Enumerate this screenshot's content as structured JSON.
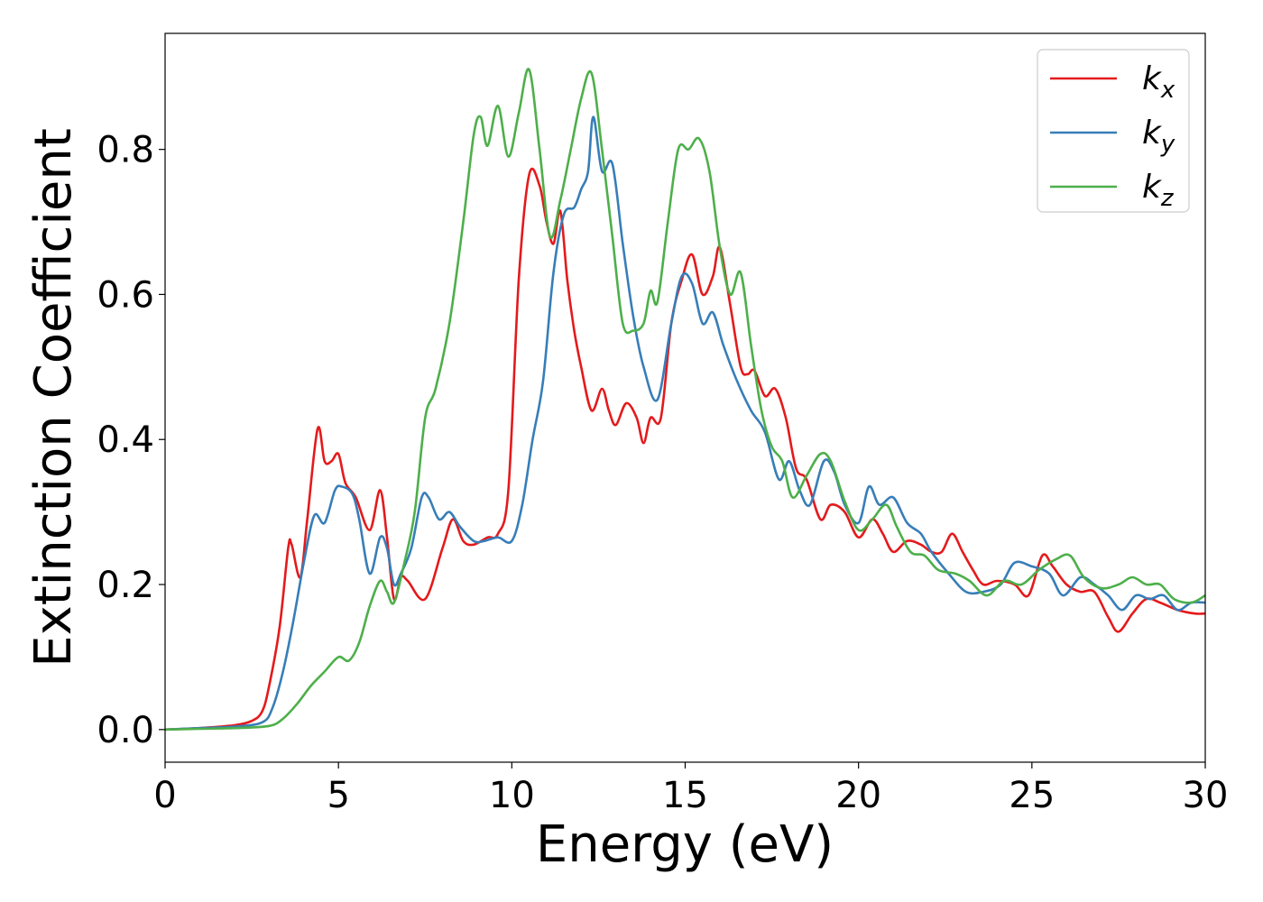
{
  "chart_data": {
    "type": "line",
    "title": "",
    "xlabel": "Energy (eV)",
    "ylabel": "Extinction Coefficient",
    "xlim": [
      0,
      30
    ],
    "ylim": [
      -0.045,
      0.96
    ],
    "xticks": [
      0,
      5,
      10,
      15,
      20,
      25,
      30
    ],
    "xtick_labels": [
      "0",
      "5",
      "10",
      "15",
      "20",
      "25",
      "30"
    ],
    "yticks": [
      0.0,
      0.2,
      0.4,
      0.6,
      0.8
    ],
    "ytick_labels": [
      "0.0",
      "0.2",
      "0.4",
      "0.6",
      "0.8"
    ],
    "grid": false,
    "legend_position": "top-right",
    "series": [
      {
        "name": "kx",
        "name_base": "k",
        "name_sub": "x",
        "color": "#e41a1c",
        "points": [
          [
            0,
            0.0
          ],
          [
            1,
            0.002
          ],
          [
            2,
            0.006
          ],
          [
            2.5,
            0.012
          ],
          [
            2.8,
            0.025
          ],
          [
            3.0,
            0.06
          ],
          [
            3.3,
            0.14
          ],
          [
            3.55,
            0.25
          ],
          [
            3.65,
            0.255
          ],
          [
            3.9,
            0.21
          ],
          [
            4.1,
            0.29
          ],
          [
            4.4,
            0.415
          ],
          [
            4.6,
            0.37
          ],
          [
            4.8,
            0.37
          ],
          [
            5.0,
            0.38
          ],
          [
            5.2,
            0.34
          ],
          [
            5.5,
            0.32
          ],
          [
            5.9,
            0.275
          ],
          [
            6.2,
            0.33
          ],
          [
            6.4,
            0.265
          ],
          [
            6.6,
            0.18
          ],
          [
            6.8,
            0.21
          ],
          [
            7.0,
            0.205
          ],
          [
            7.5,
            0.18
          ],
          [
            8.0,
            0.25
          ],
          [
            8.3,
            0.29
          ],
          [
            8.6,
            0.26
          ],
          [
            8.9,
            0.255
          ],
          [
            9.3,
            0.265
          ],
          [
            9.6,
            0.27
          ],
          [
            9.9,
            0.33
          ],
          [
            10.2,
            0.62
          ],
          [
            10.5,
            0.765
          ],
          [
            10.8,
            0.75
          ],
          [
            11.0,
            0.7
          ],
          [
            11.2,
            0.67
          ],
          [
            11.4,
            0.715
          ],
          [
            11.6,
            0.62
          ],
          [
            11.8,
            0.55
          ],
          [
            12.0,
            0.5
          ],
          [
            12.3,
            0.44
          ],
          [
            12.6,
            0.47
          ],
          [
            12.8,
            0.44
          ],
          [
            13.0,
            0.42
          ],
          [
            13.3,
            0.45
          ],
          [
            13.6,
            0.43
          ],
          [
            13.8,
            0.395
          ],
          [
            14.0,
            0.43
          ],
          [
            14.3,
            0.43
          ],
          [
            14.6,
            0.56
          ],
          [
            14.9,
            0.62
          ],
          [
            15.2,
            0.655
          ],
          [
            15.5,
            0.6
          ],
          [
            15.8,
            0.625
          ],
          [
            16.0,
            0.665
          ],
          [
            16.3,
            0.585
          ],
          [
            16.6,
            0.5
          ],
          [
            16.8,
            0.49
          ],
          [
            17.0,
            0.495
          ],
          [
            17.3,
            0.46
          ],
          [
            17.6,
            0.47
          ],
          [
            17.9,
            0.43
          ],
          [
            18.2,
            0.36
          ],
          [
            18.5,
            0.345
          ],
          [
            18.9,
            0.29
          ],
          [
            19.2,
            0.31
          ],
          [
            19.6,
            0.3
          ],
          [
            20.0,
            0.265
          ],
          [
            20.4,
            0.29
          ],
          [
            20.7,
            0.27
          ],
          [
            21.0,
            0.245
          ],
          [
            21.4,
            0.26
          ],
          [
            21.8,
            0.255
          ],
          [
            22.1,
            0.245
          ],
          [
            22.4,
            0.245
          ],
          [
            22.7,
            0.27
          ],
          [
            23.0,
            0.245
          ],
          [
            23.3,
            0.22
          ],
          [
            23.6,
            0.2
          ],
          [
            24.0,
            0.205
          ],
          [
            24.5,
            0.2
          ],
          [
            24.9,
            0.185
          ],
          [
            25.3,
            0.24
          ],
          [
            25.6,
            0.225
          ],
          [
            26.0,
            0.2
          ],
          [
            26.4,
            0.19
          ],
          [
            26.8,
            0.19
          ],
          [
            27.2,
            0.155
          ],
          [
            27.5,
            0.135
          ],
          [
            27.9,
            0.16
          ],
          [
            28.3,
            0.18
          ],
          [
            28.7,
            0.175
          ],
          [
            29.2,
            0.165
          ],
          [
            29.7,
            0.16
          ],
          [
            30.0,
            0.16
          ]
        ]
      },
      {
        "name": "ky",
        "name_base": "k",
        "name_sub": "y",
        "color": "#377eb8",
        "points": [
          [
            0,
            0.0
          ],
          [
            1,
            0.002
          ],
          [
            2,
            0.004
          ],
          [
            2.8,
            0.01
          ],
          [
            3.1,
            0.03
          ],
          [
            3.4,
            0.08
          ],
          [
            3.7,
            0.15
          ],
          [
            4.0,
            0.23
          ],
          [
            4.3,
            0.295
          ],
          [
            4.6,
            0.285
          ],
          [
            4.9,
            0.33
          ],
          [
            5.1,
            0.335
          ],
          [
            5.4,
            0.325
          ],
          [
            5.6,
            0.29
          ],
          [
            5.9,
            0.215
          ],
          [
            6.2,
            0.265
          ],
          [
            6.4,
            0.25
          ],
          [
            6.6,
            0.2
          ],
          [
            6.8,
            0.215
          ],
          [
            7.1,
            0.25
          ],
          [
            7.4,
            0.32
          ],
          [
            7.6,
            0.32
          ],
          [
            7.9,
            0.29
          ],
          [
            8.2,
            0.3
          ],
          [
            8.5,
            0.28
          ],
          [
            8.9,
            0.26
          ],
          [
            9.2,
            0.26
          ],
          [
            9.6,
            0.265
          ],
          [
            10.0,
            0.26
          ],
          [
            10.3,
            0.31
          ],
          [
            10.6,
            0.4
          ],
          [
            10.9,
            0.48
          ],
          [
            11.2,
            0.63
          ],
          [
            11.5,
            0.71
          ],
          [
            11.8,
            0.72
          ],
          [
            12.0,
            0.745
          ],
          [
            12.2,
            0.77
          ],
          [
            12.35,
            0.845
          ],
          [
            12.6,
            0.77
          ],
          [
            12.9,
            0.78
          ],
          [
            13.2,
            0.67
          ],
          [
            13.5,
            0.57
          ],
          [
            13.8,
            0.5
          ],
          [
            14.2,
            0.455
          ],
          [
            14.6,
            0.56
          ],
          [
            14.9,
            0.625
          ],
          [
            15.2,
            0.615
          ],
          [
            15.5,
            0.56
          ],
          [
            15.8,
            0.575
          ],
          [
            16.1,
            0.53
          ],
          [
            16.5,
            0.48
          ],
          [
            16.9,
            0.44
          ],
          [
            17.3,
            0.41
          ],
          [
            17.7,
            0.345
          ],
          [
            18.0,
            0.37
          ],
          [
            18.3,
            0.33
          ],
          [
            18.6,
            0.31
          ],
          [
            19.0,
            0.37
          ],
          [
            19.3,
            0.355
          ],
          [
            19.6,
            0.31
          ],
          [
            20.0,
            0.285
          ],
          [
            20.3,
            0.335
          ],
          [
            20.6,
            0.31
          ],
          [
            21.0,
            0.32
          ],
          [
            21.4,
            0.285
          ],
          [
            21.8,
            0.27
          ],
          [
            22.1,
            0.245
          ],
          [
            22.6,
            0.215
          ],
          [
            23.1,
            0.19
          ],
          [
            23.6,
            0.19
          ],
          [
            24.1,
            0.2
          ],
          [
            24.5,
            0.23
          ],
          [
            25.0,
            0.225
          ],
          [
            25.5,
            0.215
          ],
          [
            25.9,
            0.185
          ],
          [
            26.4,
            0.21
          ],
          [
            26.8,
            0.2
          ],
          [
            27.2,
            0.185
          ],
          [
            27.6,
            0.165
          ],
          [
            28.0,
            0.185
          ],
          [
            28.4,
            0.18
          ],
          [
            28.8,
            0.185
          ],
          [
            29.2,
            0.165
          ],
          [
            29.6,
            0.175
          ],
          [
            30.0,
            0.175
          ]
        ]
      },
      {
        "name": "kz",
        "name_base": "k",
        "name_sub": "z",
        "color": "#4daf4a",
        "points": [
          [
            0,
            0.0
          ],
          [
            1,
            0.001
          ],
          [
            2,
            0.002
          ],
          [
            3.0,
            0.005
          ],
          [
            3.4,
            0.015
          ],
          [
            3.8,
            0.035
          ],
          [
            4.2,
            0.06
          ],
          [
            4.6,
            0.08
          ],
          [
            5.0,
            0.1
          ],
          [
            5.3,
            0.095
          ],
          [
            5.6,
            0.12
          ],
          [
            5.9,
            0.17
          ],
          [
            6.2,
            0.205
          ],
          [
            6.4,
            0.19
          ],
          [
            6.6,
            0.175
          ],
          [
            6.9,
            0.23
          ],
          [
            7.2,
            0.3
          ],
          [
            7.5,
            0.43
          ],
          [
            7.8,
            0.47
          ],
          [
            8.2,
            0.56
          ],
          [
            8.6,
            0.7
          ],
          [
            8.9,
            0.82
          ],
          [
            9.1,
            0.845
          ],
          [
            9.3,
            0.805
          ],
          [
            9.6,
            0.86
          ],
          [
            9.9,
            0.79
          ],
          [
            10.2,
            0.85
          ],
          [
            10.5,
            0.91
          ],
          [
            10.8,
            0.8
          ],
          [
            11.1,
            0.68
          ],
          [
            11.4,
            0.73
          ],
          [
            11.7,
            0.8
          ],
          [
            12.0,
            0.87
          ],
          [
            12.3,
            0.905
          ],
          [
            12.6,
            0.8
          ],
          [
            12.9,
            0.68
          ],
          [
            13.2,
            0.56
          ],
          [
            13.5,
            0.55
          ],
          [
            13.8,
            0.56
          ],
          [
            14.0,
            0.605
          ],
          [
            14.2,
            0.59
          ],
          [
            14.5,
            0.7
          ],
          [
            14.8,
            0.8
          ],
          [
            15.1,
            0.8
          ],
          [
            15.4,
            0.815
          ],
          [
            15.7,
            0.77
          ],
          [
            16.0,
            0.665
          ],
          [
            16.3,
            0.6
          ],
          [
            16.6,
            0.63
          ],
          [
            16.9,
            0.53
          ],
          [
            17.2,
            0.44
          ],
          [
            17.5,
            0.39
          ],
          [
            17.8,
            0.37
          ],
          [
            18.1,
            0.32
          ],
          [
            18.5,
            0.35
          ],
          [
            18.9,
            0.38
          ],
          [
            19.2,
            0.37
          ],
          [
            19.6,
            0.315
          ],
          [
            20.0,
            0.275
          ],
          [
            20.4,
            0.29
          ],
          [
            20.8,
            0.31
          ],
          [
            21.1,
            0.28
          ],
          [
            21.5,
            0.245
          ],
          [
            21.9,
            0.24
          ],
          [
            22.3,
            0.22
          ],
          [
            22.8,
            0.215
          ],
          [
            23.2,
            0.205
          ],
          [
            23.7,
            0.185
          ],
          [
            24.2,
            0.205
          ],
          [
            24.7,
            0.2
          ],
          [
            25.2,
            0.22
          ],
          [
            25.7,
            0.235
          ],
          [
            26.1,
            0.24
          ],
          [
            26.5,
            0.21
          ],
          [
            27.0,
            0.195
          ],
          [
            27.5,
            0.2
          ],
          [
            27.9,
            0.21
          ],
          [
            28.3,
            0.2
          ],
          [
            28.7,
            0.2
          ],
          [
            29.1,
            0.18
          ],
          [
            29.6,
            0.175
          ],
          [
            30.0,
            0.185
          ]
        ]
      }
    ]
  }
}
